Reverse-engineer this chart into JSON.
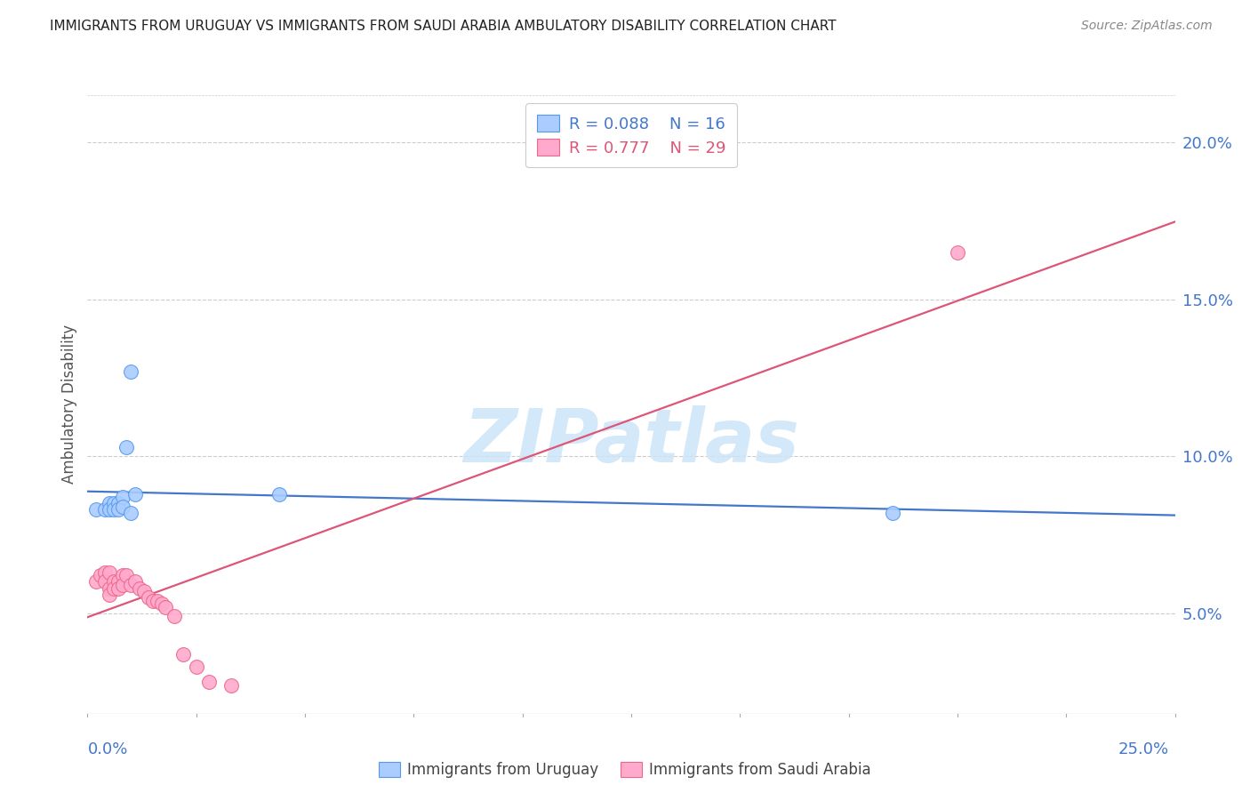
{
  "title": "IMMIGRANTS FROM URUGUAY VS IMMIGRANTS FROM SAUDI ARABIA AMBULATORY DISABILITY CORRELATION CHART",
  "source": "Source: ZipAtlas.com",
  "ylabel": "Ambulatory Disability",
  "ytick_vals": [
    0.05,
    0.1,
    0.15,
    0.2
  ],
  "ytick_labels": [
    "5.0%",
    "10.0%",
    "15.0%",
    "20.0%"
  ],
  "xlim": [
    0.0,
    0.25
  ],
  "ylim": [
    0.018,
    0.215
  ],
  "legend_uruguay_R": "0.088",
  "legend_uruguay_N": "16",
  "legend_saudi_R": "0.777",
  "legend_saudi_N": "29",
  "color_uruguay_fill": "#aaccff",
  "color_uruguay_edge": "#5599ee",
  "color_saudi_fill": "#ffaacc",
  "color_saudi_edge": "#ee6688",
  "color_line_uruguay": "#4477cc",
  "color_line_saudi": "#dd5577",
  "color_text_blue": "#4477cc",
  "color_grid": "#cccccc",
  "watermark": "ZIPatlas",
  "uruguay_x": [
    0.002,
    0.004,
    0.005,
    0.005,
    0.006,
    0.006,
    0.007,
    0.007,
    0.008,
    0.008,
    0.009,
    0.01,
    0.01,
    0.011,
    0.044,
    0.185
  ],
  "uruguay_y": [
    0.083,
    0.083,
    0.085,
    0.083,
    0.085,
    0.083,
    0.085,
    0.083,
    0.087,
    0.084,
    0.103,
    0.127,
    0.082,
    0.088,
    0.088,
    0.082
  ],
  "saudi_x": [
    0.002,
    0.003,
    0.004,
    0.004,
    0.005,
    0.005,
    0.005,
    0.006,
    0.006,
    0.007,
    0.007,
    0.008,
    0.008,
    0.009,
    0.01,
    0.011,
    0.012,
    0.013,
    0.014,
    0.015,
    0.016,
    0.017,
    0.018,
    0.02,
    0.022,
    0.025,
    0.028,
    0.033,
    0.2
  ],
  "saudi_y": [
    0.06,
    0.062,
    0.063,
    0.06,
    0.063,
    0.058,
    0.056,
    0.06,
    0.058,
    0.06,
    0.058,
    0.062,
    0.059,
    0.062,
    0.059,
    0.06,
    0.058,
    0.057,
    0.055,
    0.054,
    0.054,
    0.053,
    0.052,
    0.049,
    0.037,
    0.033,
    0.028,
    0.027,
    0.165
  ]
}
